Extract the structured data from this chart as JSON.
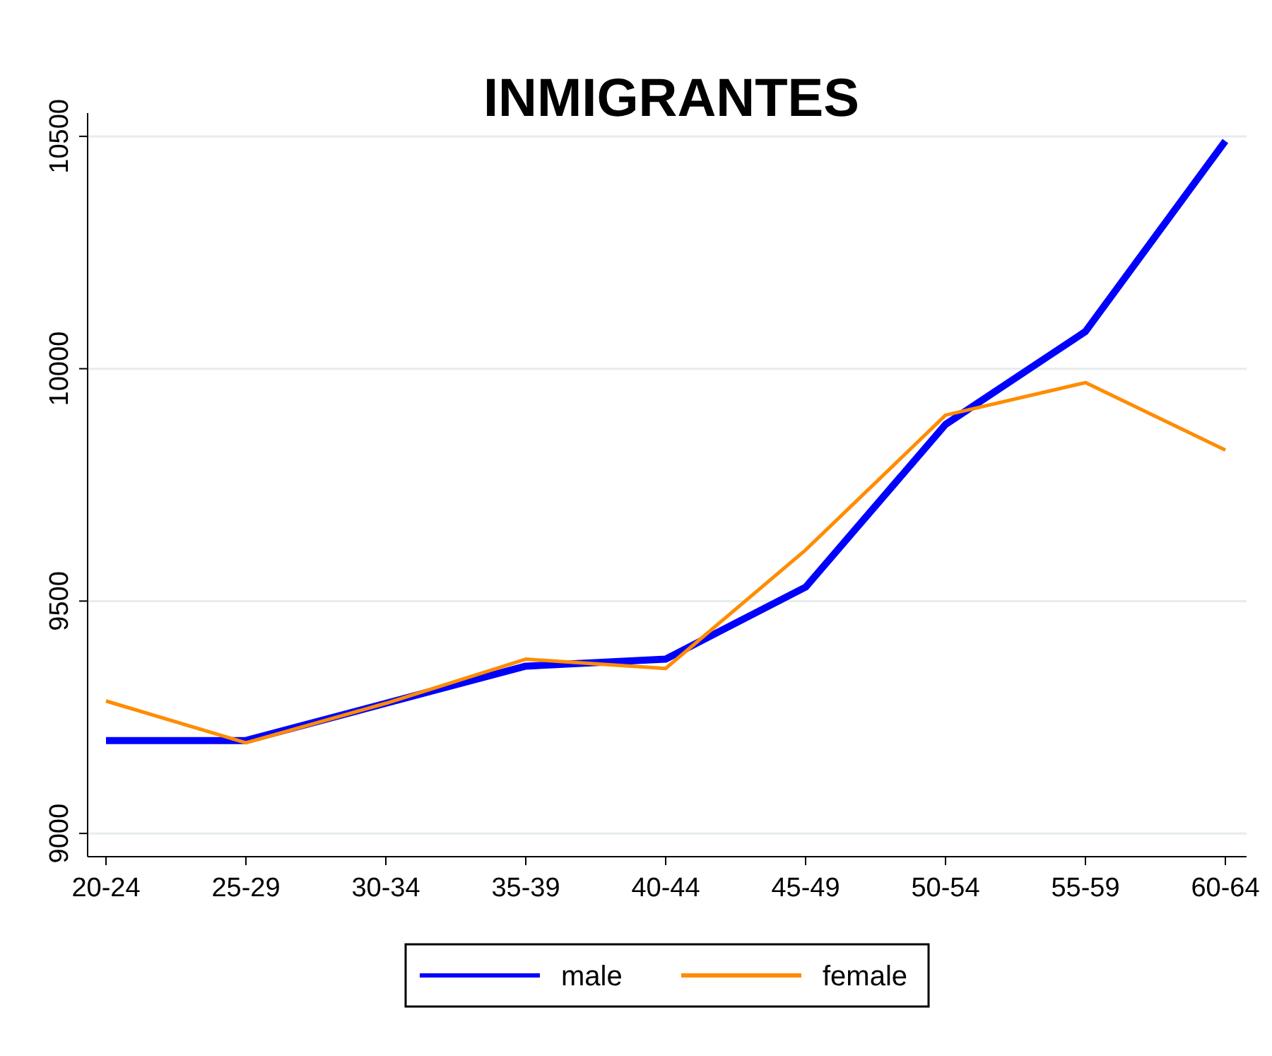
{
  "chart_data": {
    "type": "line",
    "title": "INMIGRANTES",
    "categories": [
      "20-24",
      "25-29",
      "30-34",
      "35-39",
      "40-44",
      "45-49",
      "50-54",
      "55-59",
      "60-64"
    ],
    "series": [
      {
        "name": "male",
        "color": "#0000ff",
        "values": [
          9200,
          9200,
          9280,
          9360,
          9375,
          9530,
          9880,
          10080,
          10490
        ]
      },
      {
        "name": "female",
        "color": "#ff8c00",
        "values": [
          9285,
          9195,
          9280,
          9375,
          9355,
          9610,
          9900,
          9970,
          9825
        ]
      }
    ],
    "ylim": [
      8950,
      10550
    ],
    "yticks": [
      9000,
      9500,
      10000,
      10500
    ],
    "grid": "y",
    "legend": "bottom",
    "marker": "none",
    "line_style": "solid"
  }
}
